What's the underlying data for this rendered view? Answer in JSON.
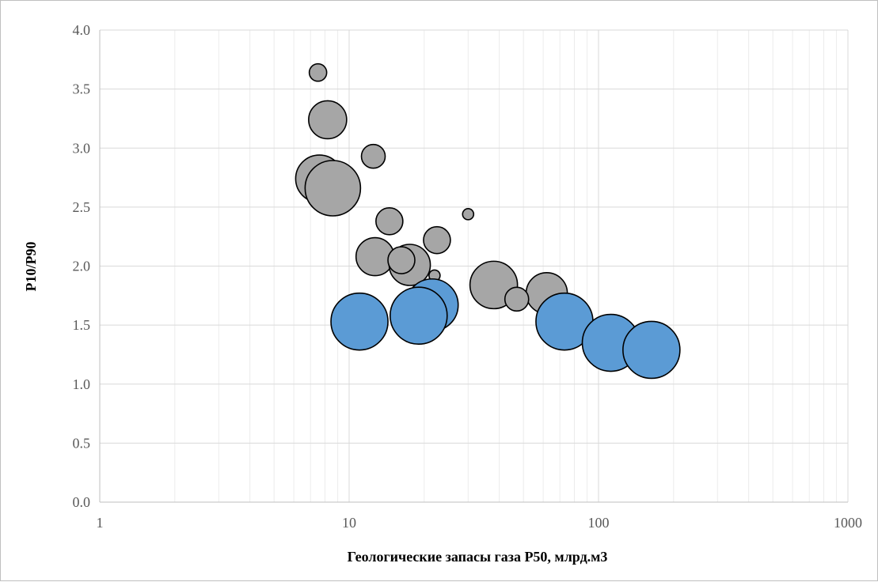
{
  "chart_data": {
    "type": "scatter",
    "subtype": "bubble",
    "title": "",
    "xlabel": "Геологические запасы газа P50, млрд.м3",
    "ylabel": "P10/P90",
    "xscale": "log",
    "xlim": [
      1,
      1000
    ],
    "ylim": [
      0,
      4
    ],
    "xticks": [
      "1",
      "10",
      "100",
      "1000"
    ],
    "yticks": [
      "0.0",
      "0.5",
      "1.0",
      "1.5",
      "2.0",
      "2.5",
      "3.0",
      "3.5",
      "4.0"
    ],
    "grid": true,
    "legend": "none",
    "series": [
      {
        "color": "#a6a6a6",
        "points": [
          {
            "x": 7.5,
            "y": 3.64,
            "size": 11
          },
          {
            "x": 8.2,
            "y": 3.24,
            "size": 24
          },
          {
            "x": 12.5,
            "y": 2.93,
            "size": 15
          },
          {
            "x": 7.6,
            "y": 2.74,
            "size": 30
          },
          {
            "x": 8.6,
            "y": 2.66,
            "size": 35
          },
          {
            "x": 30,
            "y": 2.44,
            "size": 7
          },
          {
            "x": 14.5,
            "y": 2.38,
            "size": 17
          },
          {
            "x": 22.5,
            "y": 2.22,
            "size": 17
          },
          {
            "x": 12.7,
            "y": 2.08,
            "size": 24
          },
          {
            "x": 17.5,
            "y": 2.01,
            "size": 26
          },
          {
            "x": 16.2,
            "y": 2.05,
            "size": 17
          },
          {
            "x": 22.0,
            "y": 1.92,
            "size": 7
          },
          {
            "x": 38.0,
            "y": 1.84,
            "size": 30
          },
          {
            "x": 62.0,
            "y": 1.77,
            "size": 26
          },
          {
            "x": 47.0,
            "y": 1.72,
            "size": 15
          }
        ]
      },
      {
        "color": "#5b9bd5",
        "points": [
          {
            "x": 11.0,
            "y": 1.53,
            "size": 36
          },
          {
            "x": 21.5,
            "y": 1.67,
            "size": 33
          },
          {
            "x": 19.0,
            "y": 1.58,
            "size": 36
          },
          {
            "x": 73.0,
            "y": 1.53,
            "size": 36
          },
          {
            "x": 112.0,
            "y": 1.35,
            "size": 36
          },
          {
            "x": 163.0,
            "y": 1.29,
            "size": 36
          }
        ]
      }
    ]
  }
}
